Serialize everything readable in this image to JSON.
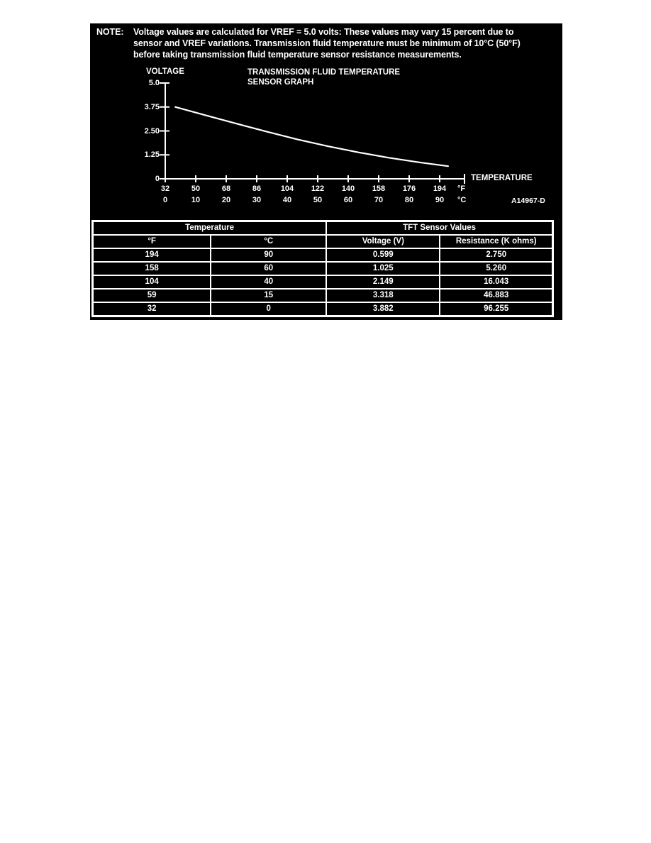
{
  "page": {
    "background": "#ffffff",
    "panel_background": "#000000",
    "text_color": "#ffffff"
  },
  "note": {
    "label": "NOTE:",
    "lines": [
      "Voltage values are calculated for VREF = 5.0 volts: These values may vary 15 percent due to",
      "sensor and VREF variations. Transmission fluid temperature must be minimum of 10°C (50°F)",
      "before taking transmission fluid temperature sensor resistance measurements."
    ]
  },
  "chart": {
    "y_axis_label": "VOLTAGE",
    "title_lines": [
      "TRANSMISSION FLUID TEMPERATURE",
      "SENSOR GRAPH"
    ],
    "x_axis_label": "TEMPERATURE",
    "unit_f": "°F",
    "unit_c": "°C",
    "figure_ref": "A14967-D"
  },
  "chart_data": {
    "type": "line",
    "title": "TRANSMISSION FLUID TEMPERATURE SENSOR GRAPH",
    "xlabel": "TEMPERATURE",
    "ylabel": "VOLTAGE",
    "x_ticks_f": [
      32,
      50,
      68,
      86,
      104,
      122,
      140,
      158,
      176,
      194
    ],
    "x_ticks_c": [
      0,
      10,
      20,
      30,
      40,
      50,
      60,
      70,
      80,
      90
    ],
    "y_ticks": [
      "5.0",
      "3.75",
      "2.50",
      "1.25",
      "0"
    ],
    "ylim": [
      0,
      5
    ],
    "xlim_f": [
      32,
      200
    ],
    "grid": false,
    "legend": false,
    "curve_points_f_v": [
      [
        38,
        3.75
      ],
      [
        56,
        3.31
      ],
      [
        74,
        2.88
      ],
      [
        92,
        2.46
      ],
      [
        110,
        2.06
      ],
      [
        128,
        1.7
      ],
      [
        146,
        1.38
      ],
      [
        164,
        1.1
      ],
      [
        182,
        0.86
      ],
      [
        199,
        0.66
      ]
    ]
  },
  "table": {
    "group_headers": [
      {
        "label": "Temperature",
        "colspan": 2
      },
      {
        "label": "TFT Sensor Values",
        "colspan": 2
      }
    ],
    "columns": [
      "°F",
      "°C",
      "Voltage (V)",
      "Resistance (K ohms)"
    ],
    "rows": [
      [
        "194",
        "90",
        "0.599",
        "2.750"
      ],
      [
        "158",
        "60",
        "1.025",
        "5.260"
      ],
      [
        "104",
        "40",
        "2.149",
        "16.043"
      ],
      [
        "59",
        "15",
        "3.318",
        "46.883"
      ],
      [
        "32",
        "0",
        "3.882",
        "96.255"
      ]
    ]
  }
}
